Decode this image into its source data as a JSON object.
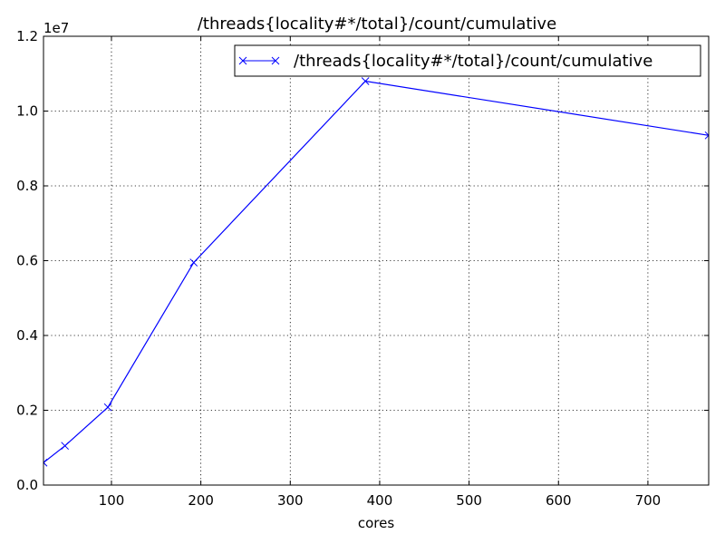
{
  "chart_data": {
    "type": "line",
    "title": "/threads{locality#*/total}/count/cumulative",
    "xlabel": "cores",
    "ylabel": "",
    "xlim": [
      24,
      768
    ],
    "ylim": [
      0,
      12000000
    ],
    "y_offset_label": "1e7",
    "x_ticks": [
      100,
      200,
      300,
      400,
      500,
      600,
      700
    ],
    "x_tick_labels": [
      "100",
      "200",
      "300",
      "400",
      "500",
      "600",
      "700"
    ],
    "y_ticks": [
      0,
      2000000,
      4000000,
      6000000,
      8000000,
      10000000,
      12000000
    ],
    "y_tick_labels": [
      "0.0",
      "0.2",
      "0.4",
      "0.6",
      "0.8",
      "1.0",
      "1.2"
    ],
    "grid": true,
    "legend_position": "top-right",
    "series": [
      {
        "name": "/threads{locality#*/total}/count/cumulative",
        "color": "#0000ff",
        "marker": "x",
        "x": [
          24,
          48,
          96,
          192,
          384,
          768
        ],
        "y": [
          600000,
          1050000,
          2080000,
          5950000,
          10800000,
          9350000
        ]
      }
    ]
  }
}
